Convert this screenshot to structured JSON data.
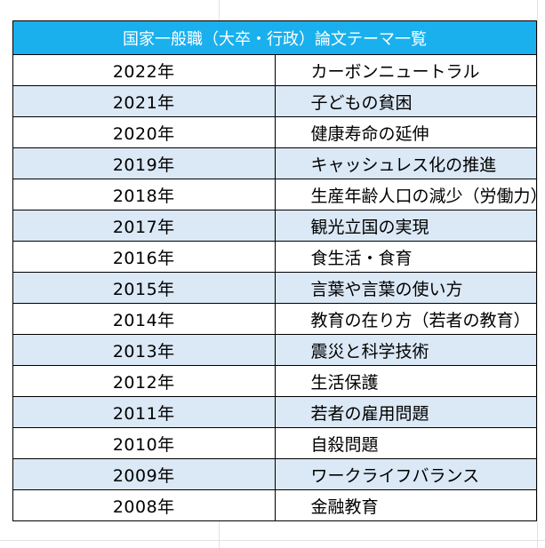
{
  "title": "国家一般職（大卒・行政）論文テーマ一覧",
  "rows": [
    {
      "year": "2022年",
      "theme": "カーボンニュートラル"
    },
    {
      "year": "2021年",
      "theme": "子どもの貧困"
    },
    {
      "year": "2020年",
      "theme": "健康寿命の延伸"
    },
    {
      "year": "2019年",
      "theme": "キャッシュレス化の推進"
    },
    {
      "year": "2018年",
      "theme": "生産年齢人口の減少（労働力）"
    },
    {
      "year": "2017年",
      "theme": "観光立国の実現"
    },
    {
      "year": "2016年",
      "theme": "食生活・食育"
    },
    {
      "year": "2015年",
      "theme": "言葉や言葉の使い方"
    },
    {
      "year": "2014年",
      "theme": "教育の在り方（若者の教育）"
    },
    {
      "year": "2013年",
      "theme": "震災と科学技術"
    },
    {
      "year": "2012年",
      "theme": "生活保護"
    },
    {
      "year": "2011年",
      "theme": "若者の雇用問題"
    },
    {
      "year": "2010年",
      "theme": "自殺問題"
    },
    {
      "year": "2009年",
      "theme": "ワークライフバランス"
    },
    {
      "year": "2008年",
      "theme": "金融教育"
    }
  ],
  "colors": {
    "header_bg": "#1ab0ee",
    "header_text": "#ffffff",
    "alt_row_bg": "#dbe8f5",
    "border": "#000000"
  }
}
